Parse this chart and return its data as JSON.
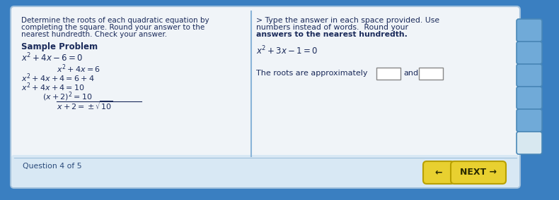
{
  "bg_outer": "#3a7fc1",
  "bg_panel": "#f0f4f8",
  "bg_bottom_bar": "#d8e8f4",
  "text_color": "#1a2a5a",
  "bold_color": "#1a2a5a",
  "left_title_line1": "Determine the roots of each quadratic equation by",
  "left_title_line2": "completing the square. Round your answer to the",
  "left_title_line3": "nearest hundredth. Check your answer.",
  "sample_label": "Sample Problem",
  "eq1": "$x^2+4x-6=0$",
  "step1": "$x^2+4x=6$",
  "step2": "$x^2+4x+4=6+4$",
  "step3": "$x^2+4x+4=10$",
  "step4": "$(x+2)^2=10$",
  "step5": "$x+2=\\pm\\sqrt{10}$",
  "right_instr_line1": "> Type the answer in each space provided. Use",
  "right_instr_line2": "numbers instead of words.  Round your",
  "right_instr_line3": "answers to the nearest hundredth.",
  "right_eq": "$x^2+3x-1=0$",
  "roots_label": "The roots are approximately",
  "question_label": "Question 4 of 5",
  "next_btn": "NEXT →",
  "back_btn": "←",
  "btn_color": "#e8d030",
  "btn_text_color": "#2a2a00",
  "divider_color": "#8ab4d8",
  "panel_border": "#a0c0dc",
  "icon_bg": "#70aad8",
  "icon_border": "#4a88b8",
  "icon_last_bg": "#d8e8f0"
}
